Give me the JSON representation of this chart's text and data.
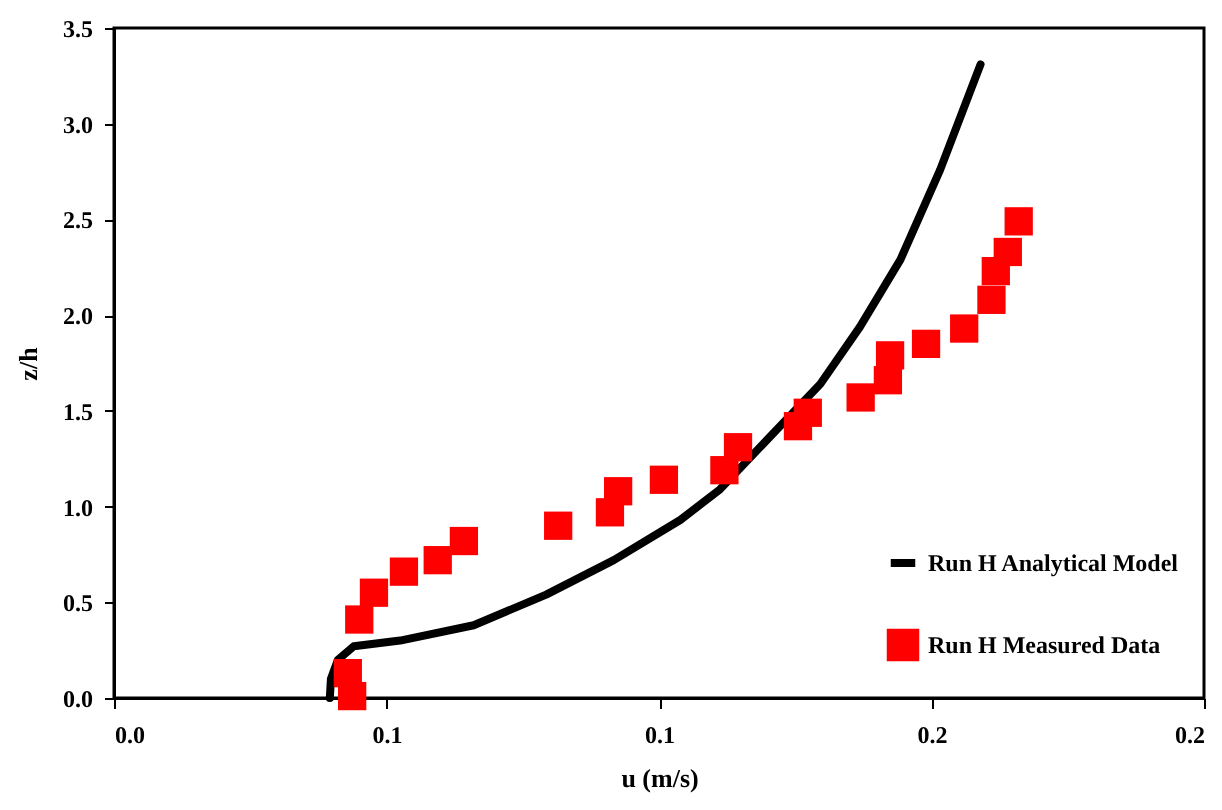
{
  "chart_data": {
    "type": "scatter",
    "xlabel": "u (m/s)",
    "ylabel": "z/h",
    "xlim": [
      0,
      0.2
    ],
    "ylim": [
      0,
      3.5
    ],
    "xticks": [
      {
        "value": 0,
        "label": "0.0"
      },
      {
        "value": 0.05,
        "label": "0.1"
      },
      {
        "value": 0.1,
        "label": "0.1"
      },
      {
        "value": 0.15,
        "label": "0.2"
      },
      {
        "value": 0.2,
        "label": "0.2"
      }
    ],
    "yticks": [
      {
        "value": 0,
        "label": "0.0"
      },
      {
        "value": 0.5,
        "label": "0.5"
      },
      {
        "value": 1,
        "label": "1.0"
      },
      {
        "value": 1.5,
        "label": "1.5"
      },
      {
        "value": 2,
        "label": "2.0"
      },
      {
        "value": 2.5,
        "label": "2.5"
      },
      {
        "value": 3,
        "label": "3.0"
      },
      {
        "value": 3.5,
        "label": "3.5"
      }
    ],
    "grid": false,
    "legend": "bottom right",
    "series": [
      {
        "name": "Run H Analytical Model",
        "type": "line",
        "color": "#000000",
        "marker": "none",
        "line_style": "solid",
        "x": [
          0.0396,
          0.0398,
          0.0411,
          0.044,
          0.0525,
          0.066,
          0.0793,
          0.0917,
          0.1039,
          0.1112,
          0.1222,
          0.1296,
          0.1369,
          0.1443,
          0.1516,
          0.159
        ],
        "values": [
          0,
          0.1,
          0.2,
          0.27,
          0.3,
          0.38,
          0.54,
          0.72,
          0.93,
          1.09,
          1.42,
          1.64,
          1.94,
          2.29,
          2.76,
          3.31
        ]
      },
      {
        "name": "Run H Measured Data",
        "color": "#ff0000",
        "marker": "square",
        "x": [
          0.0437,
          0.0429,
          0.045,
          0.0477,
          0.0532,
          0.0594,
          0.0642,
          0.0815,
          0.091,
          0.0925,
          0.1009,
          0.112,
          0.1145,
          0.1255,
          0.1273,
          0.137,
          0.142,
          0.1424,
          0.149,
          0.156,
          0.161,
          0.1618,
          0.164,
          0.166
        ],
        "values": [
          0.01,
          0.13,
          0.41,
          0.55,
          0.66,
          0.72,
          0.82,
          0.9,
          0.97,
          1.08,
          1.14,
          1.19,
          1.31,
          1.42,
          1.49,
          1.57,
          1.66,
          1.79,
          1.85,
          1.93,
          2.08,
          2.23,
          2.33,
          2.49
        ]
      }
    ]
  }
}
